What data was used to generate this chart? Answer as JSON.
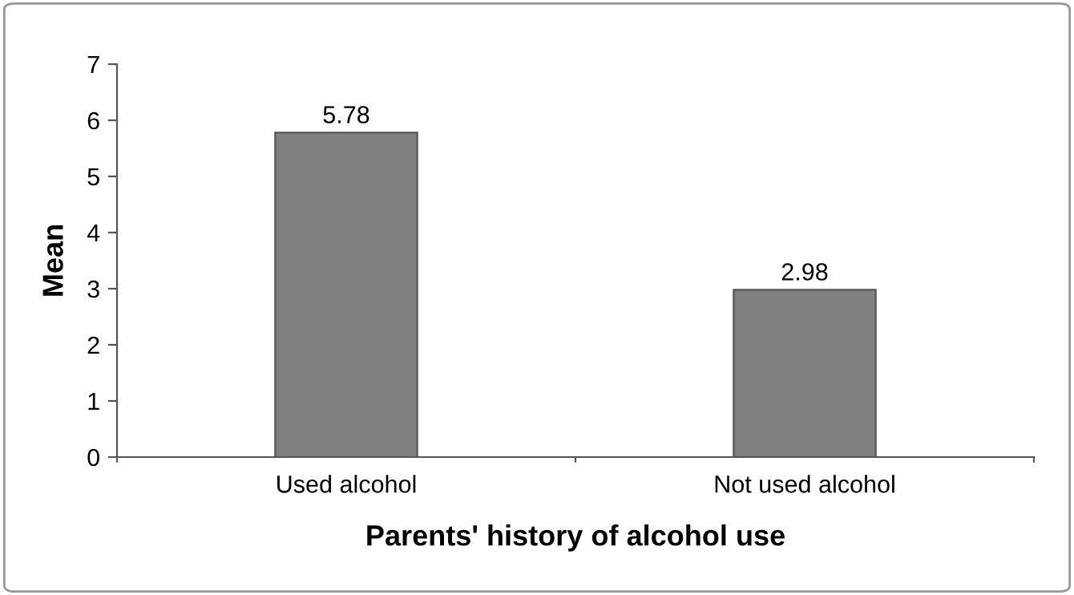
{
  "chart_data": {
    "type": "bar",
    "xlabel": "Parents' history of alcohol use",
    "ylabel": "Mean",
    "categories": [
      "Used alcohol",
      "Not used alcohol"
    ],
    "values": [
      5.78,
      2.98
    ],
    "color": "#808080",
    "ylim": [
      0,
      7
    ],
    "yticks": [
      0,
      1,
      2,
      3,
      4,
      5,
      6,
      7
    ],
    "grid": false,
    "data_labels": true
  }
}
